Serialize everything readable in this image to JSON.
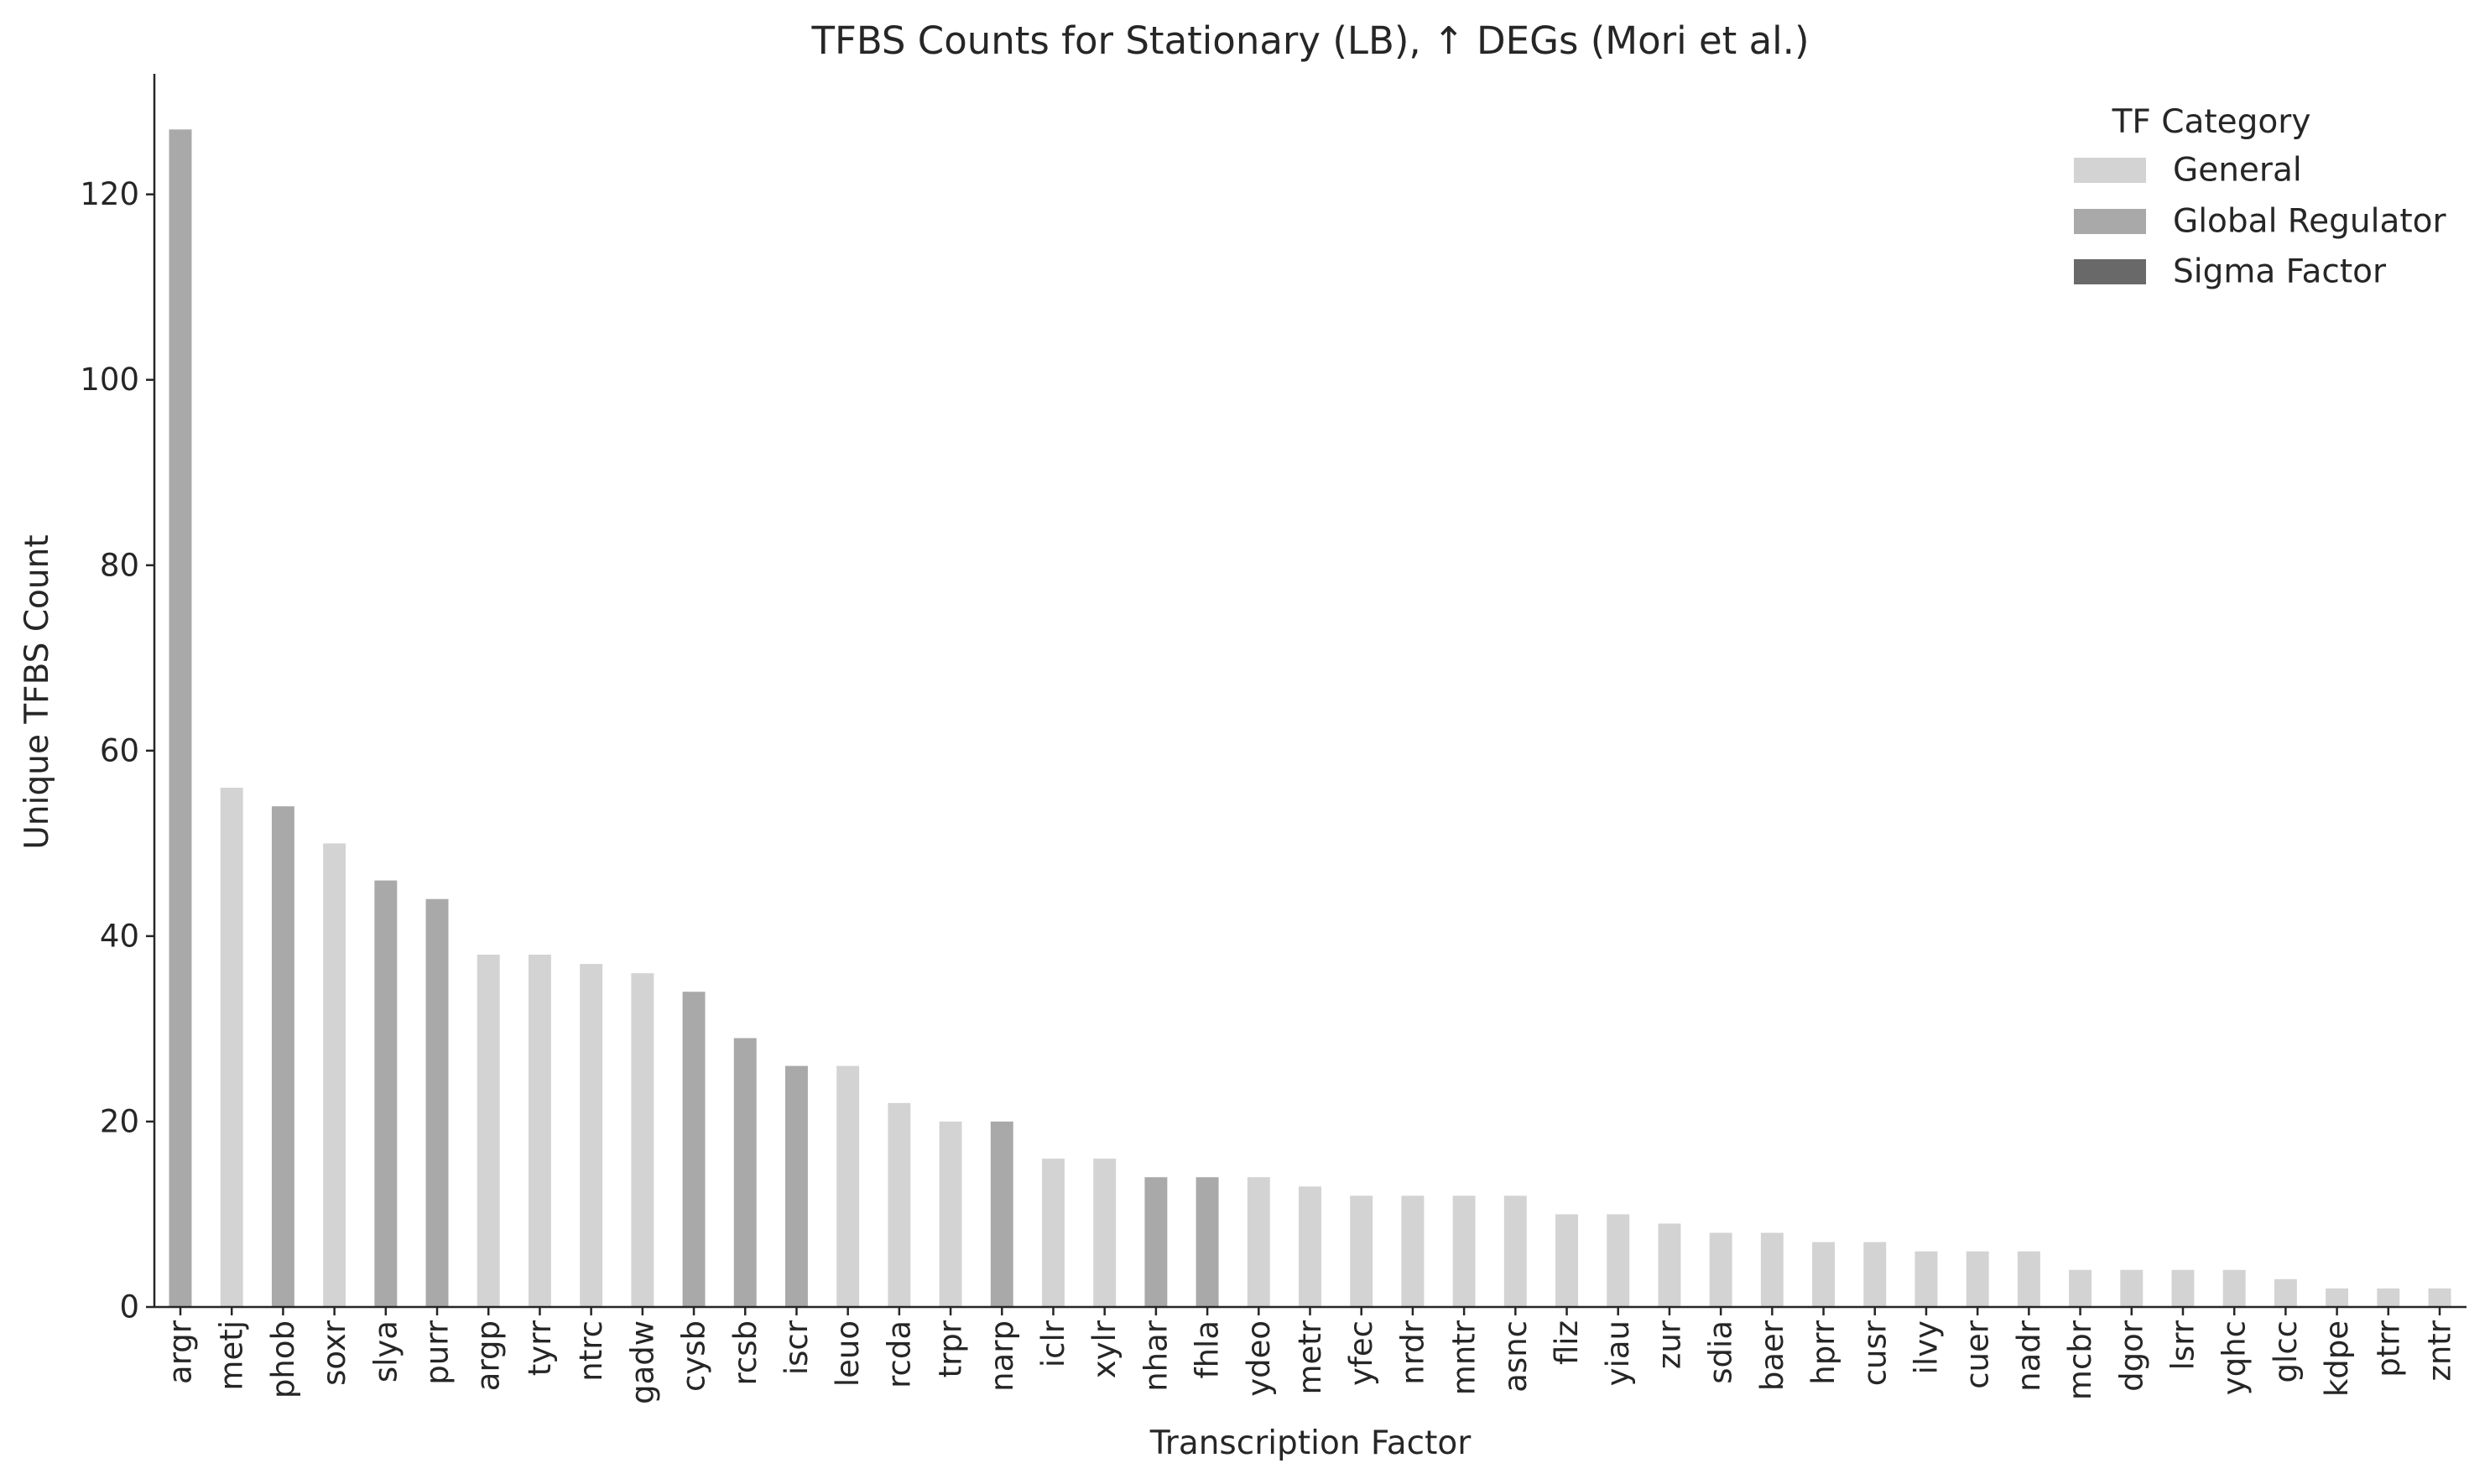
{
  "chart_data": {
    "type": "bar",
    "title": "TFBS Counts for Stationary (LB), ↑ DEGs (Mori et al.)",
    "xlabel": "Transcription Factor",
    "ylabel": "Unique TFBS Count",
    "ylim": [
      0,
      133
    ],
    "yticks": [
      "0",
      "20",
      "40",
      "60",
      "80",
      "100",
      "120"
    ],
    "grid": false,
    "legend_placement": "top-right",
    "legend": {
      "title": "TF Category",
      "items": [
        {
          "label": "General",
          "color": "#d3d3d3"
        },
        {
          "label": "Global Regulator",
          "color": "#a9a9a9"
        },
        {
          "label": "Sigma Factor",
          "color": "#696969"
        }
      ]
    },
    "categories": [
      "argr",
      "metj",
      "phob",
      "soxr",
      "slya",
      "purr",
      "argp",
      "tyrr",
      "ntrc",
      "gadw",
      "cysb",
      "rcsb",
      "iscr",
      "leuo",
      "rcda",
      "trpr",
      "narp",
      "iclr",
      "xylr",
      "nhar",
      "fhla",
      "ydeo",
      "metr",
      "yfec",
      "nrdr",
      "mntr",
      "asnc",
      "fliz",
      "yiau",
      "zur",
      "sdia",
      "baer",
      "hprr",
      "cusr",
      "ilvy",
      "cuer",
      "nadr",
      "mcbr",
      "dgor",
      "lsrr",
      "yqhc",
      "glcc",
      "kdpe",
      "ptrr",
      "zntr"
    ],
    "values": [
      127,
      56,
      54,
      50,
      46,
      44,
      38,
      38,
      37,
      36,
      34,
      29,
      26,
      26,
      22,
      20,
      20,
      16,
      16,
      14,
      14,
      14,
      13,
      12,
      12,
      12,
      12,
      10,
      10,
      9,
      8,
      8,
      7,
      7,
      6,
      6,
      6,
      4,
      4,
      4,
      4,
      3,
      2,
      2,
      2
    ],
    "bar_category": [
      "Global Regulator",
      "General",
      "Global Regulator",
      "General",
      "Global Regulator",
      "Global Regulator",
      "General",
      "General",
      "General",
      "General",
      "Global Regulator",
      "Global Regulator",
      "Global Regulator",
      "General",
      "General",
      "General",
      "Global Regulator",
      "General",
      "General",
      "Global Regulator",
      "Global Regulator",
      "General",
      "General",
      "General",
      "General",
      "General",
      "General",
      "General",
      "General",
      "General",
      "General",
      "General",
      "General",
      "General",
      "General",
      "General",
      "General",
      "General",
      "General",
      "General",
      "General",
      "General",
      "General",
      "General",
      "General"
    ]
  }
}
